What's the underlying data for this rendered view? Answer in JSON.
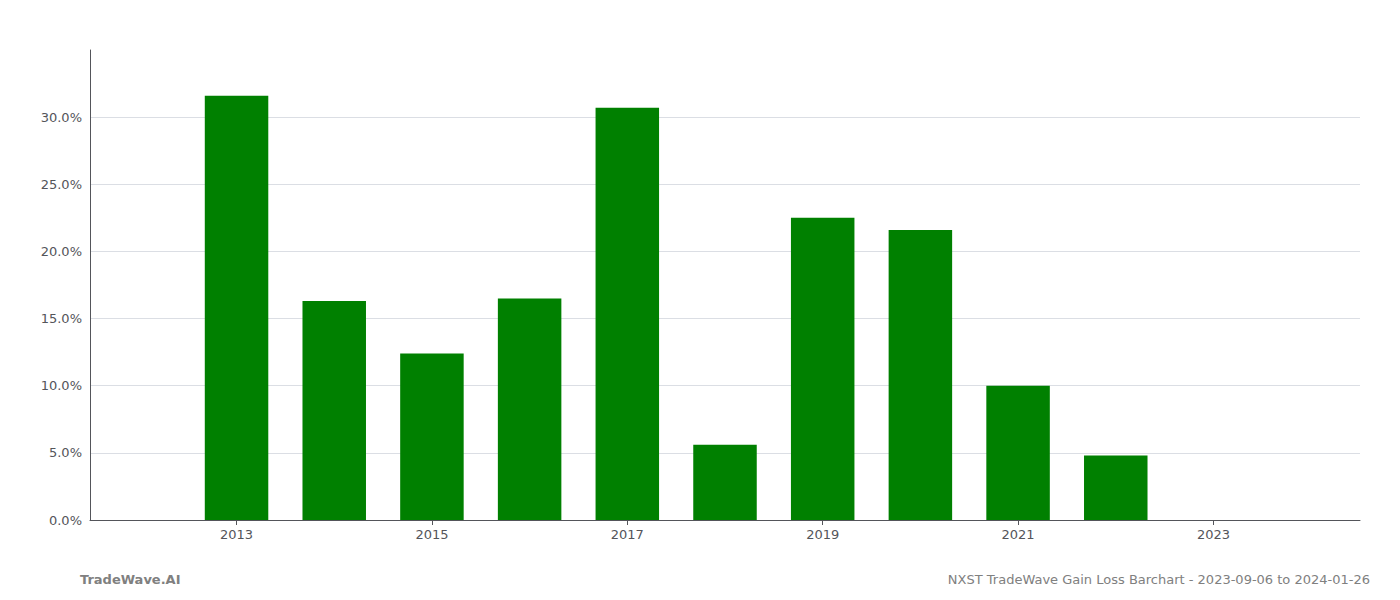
{
  "chart_data": {
    "type": "bar",
    "x": [
      2013,
      2014,
      2015,
      2016,
      2017,
      2018,
      2019,
      2020,
      2021,
      2022,
      2023
    ],
    "values": [
      0.316,
      0.163,
      0.124,
      0.165,
      0.307,
      0.056,
      0.225,
      0.216,
      0.1,
      0.048,
      0.0
    ],
    "color": "#008000",
    "xlim": [
      2011.5,
      2024.5
    ],
    "xticks": [
      2013,
      2015,
      2017,
      2019,
      2021,
      2023
    ],
    "ylim": [
      0,
      0.35
    ],
    "yticks": [
      {
        "value": 0.0,
        "label": "0.0%"
      },
      {
        "value": 0.05,
        "label": "5.0%"
      },
      {
        "value": 0.1,
        "label": "10.0%"
      },
      {
        "value": 0.15,
        "label": "15.0%"
      },
      {
        "value": 0.2,
        "label": "20.0%"
      },
      {
        "value": 0.25,
        "label": "25.0%"
      },
      {
        "value": 0.3,
        "label": "30.0%"
      }
    ],
    "grid": true,
    "annotations": [
      "TradeWave.AI",
      "NXST TradeWave Gain Loss Barchart - 2023-09-06 to 2024-01-26"
    ]
  }
}
